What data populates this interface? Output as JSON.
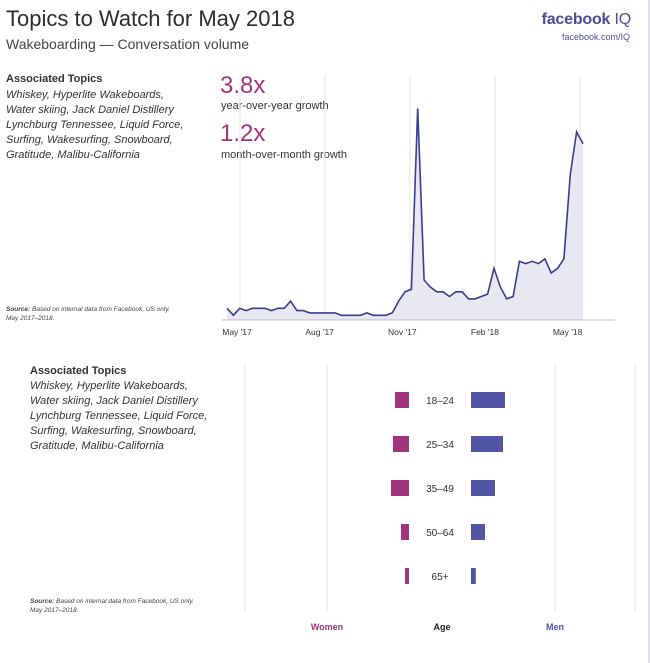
{
  "header": {
    "title": "Topics to Watch for May 2018",
    "subtitle": "Wakeboarding — Conversation volume",
    "logo_brand": "facebook",
    "logo_suffix": "IQ",
    "logo_url": "facebook.com/IQ"
  },
  "top_panel": {
    "assoc_title": "Associated Topics",
    "assoc_lines": [
      "Whiskey, Hyperlite Wakeboards,",
      "Water skiing, Jack Daniel Distillery",
      "Lynchburg Tennessee, Liquid Force,",
      "Surfing, Wakesurfing, Snowboard,",
      "Gratitude, Malibu-California"
    ],
    "source_bold": "Source:",
    "source_text": " Based on internal data from Facebook, US only.",
    "source_line2": "May 2017–2018.",
    "yoy_value": "3.8x",
    "yoy_label": "year-over-year growth",
    "mom_value": "1.2x",
    "mom_label": "month-over-month growth"
  },
  "bottom_panel": {
    "assoc_title": "Associated Topics",
    "assoc_lines": [
      "Whiskey, Hyperlite Wakeboards,",
      "Water skiing, Jack Daniel Distillery",
      "Lynchburg Tennessee, Liquid Force,",
      "Surfing, Wakesurfing, Snowboard,",
      "Gratitude, Malibu-California"
    ],
    "source_bold": "Source:",
    "source_text": " Based on internal data from Facebook, US only.",
    "source_line2": "May 2017–2018.",
    "label_women": "Women",
    "label_age": "Age",
    "label_men": "Men"
  },
  "colors": {
    "line": "#3a3d8f",
    "area": "#e8e8f2",
    "women": "#a0357e",
    "men": "#5055a6",
    "grid": "#dcdcdc"
  },
  "chart_data": [
    {
      "type": "area",
      "x_tick_labels": [
        "May '17",
        "Aug '17",
        "Nov '17",
        "Feb '18",
        "May '18"
      ],
      "x_tick_index": [
        0,
        13,
        26,
        39,
        52
      ],
      "y_unit": "relative conversation volume (unlabeled)",
      "ylim": [
        0,
        100
      ],
      "values": [
        5,
        2,
        5,
        4,
        5,
        5,
        5,
        4,
        5,
        5,
        8,
        4,
        4,
        3,
        3,
        3,
        3,
        3,
        2,
        2,
        2,
        2,
        3,
        2,
        2,
        2,
        3,
        8,
        12,
        13,
        90,
        17,
        14,
        12,
        12,
        10,
        12,
        12,
        9,
        9,
        10,
        11,
        22,
        14,
        9,
        10,
        25,
        24,
        25,
        24,
        26,
        20,
        22,
        26,
        62,
        80,
        75
      ]
    },
    {
      "type": "bar",
      "categories": [
        "18–24",
        "25–34",
        "35–49",
        "50–64",
        "65+"
      ],
      "series": [
        {
          "name": "Women",
          "values": [
            3.5,
            4.0,
            4.5,
            2.0,
            1.0
          ]
        },
        {
          "name": "Men",
          "values": [
            8.5,
            8.0,
            6.0,
            3.5,
            1.2
          ]
        }
      ],
      "xlabel": "Age"
    }
  ]
}
